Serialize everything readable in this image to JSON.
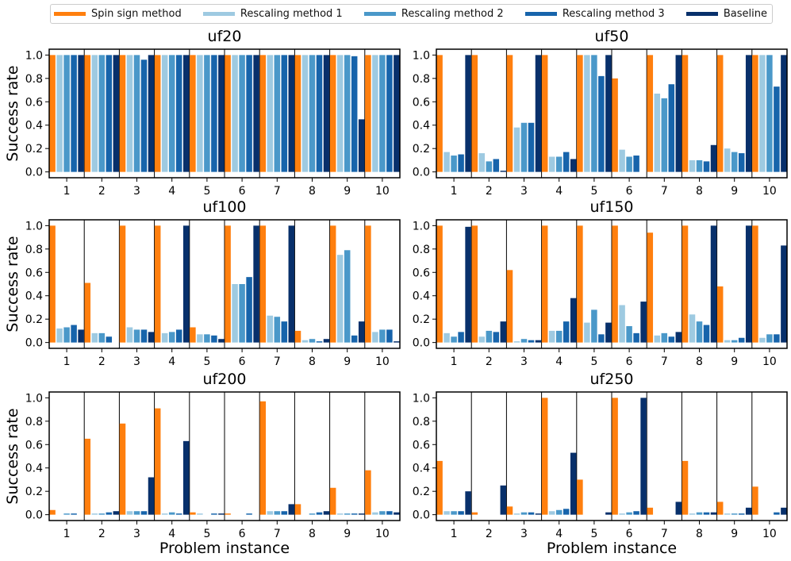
{
  "legend": {
    "items": [
      {
        "label": "Spin sign method",
        "color": "#ff7f0e"
      },
      {
        "label": "Rescaling method 1",
        "color": "#9ecae1"
      },
      {
        "label": "Rescaling method 2",
        "color": "#4a98c9"
      },
      {
        "label": "Rescaling method 3",
        "color": "#1764ab"
      },
      {
        "label": "Baseline",
        "color": "#08306b"
      }
    ]
  },
  "chart_data": [
    {
      "type": "bar",
      "title": "uf20",
      "xlabel": "",
      "ylabel": "Success rate",
      "ylim": [
        -0.05,
        1.05
      ],
      "yticks": [
        "0.0",
        "0.2",
        "0.4",
        "0.6",
        "0.8",
        "1.0"
      ],
      "categories": [
        "1",
        "2",
        "3",
        "4",
        "5",
        "6",
        "7",
        "8",
        "9",
        "10"
      ],
      "series": [
        {
          "name": "Spin sign method",
          "values": [
            1,
            1,
            1,
            1,
            1,
            1,
            1,
            1,
            1,
            1
          ]
        },
        {
          "name": "Rescaling method 1",
          "values": [
            1,
            1,
            1,
            1,
            1,
            1,
            1,
            1,
            1,
            1
          ]
        },
        {
          "name": "Rescaling method 2",
          "values": [
            1,
            1,
            1,
            1,
            1,
            1,
            1,
            1,
            1,
            1
          ]
        },
        {
          "name": "Rescaling method 3",
          "values": [
            1,
            1,
            0.96,
            1,
            1,
            1,
            1,
            1,
            0.99,
            1
          ]
        },
        {
          "name": "Baseline",
          "values": [
            1,
            1,
            1,
            1,
            1,
            1,
            1,
            1,
            0.45,
            1
          ]
        }
      ]
    },
    {
      "type": "bar",
      "title": "uf50",
      "xlabel": "",
      "ylabel": "",
      "ylim": [
        -0.05,
        1.05
      ],
      "yticks": [
        "0.0",
        "0.2",
        "0.4",
        "0.6",
        "0.8",
        "1.0"
      ],
      "categories": [
        "1",
        "2",
        "3",
        "4",
        "5",
        "6",
        "7",
        "8",
        "9",
        "10"
      ],
      "series": [
        {
          "name": "Spin sign method",
          "values": [
            1,
            1,
            1,
            1,
            1,
            0.8,
            1,
            1,
            1,
            1
          ]
        },
        {
          "name": "Rescaling method 1",
          "values": [
            0.17,
            0.16,
            0.38,
            0.13,
            1,
            0.19,
            0.67,
            0.1,
            0.2,
            1
          ]
        },
        {
          "name": "Rescaling method 2",
          "values": [
            0.14,
            0.09,
            0.42,
            0.13,
            1,
            0.13,
            0.63,
            0.1,
            0.17,
            1
          ]
        },
        {
          "name": "Rescaling method 3",
          "values": [
            0.15,
            0.11,
            0.42,
            0.17,
            0.82,
            0.14,
            0.75,
            0.09,
            0.16,
            0.73
          ]
        },
        {
          "name": "Baseline",
          "values": [
            1,
            0.01,
            1,
            0.11,
            1,
            0,
            1,
            0.23,
            1,
            1
          ]
        }
      ]
    },
    {
      "type": "bar",
      "title": "uf100",
      "xlabel": "",
      "ylabel": "Success rate",
      "ylim": [
        -0.05,
        1.05
      ],
      "yticks": [
        "0.0",
        "0.2",
        "0.4",
        "0.6",
        "0.8",
        "1.0"
      ],
      "categories": [
        "1",
        "2",
        "3",
        "4",
        "5",
        "6",
        "7",
        "8",
        "9",
        "10"
      ],
      "series": [
        {
          "name": "Spin sign method",
          "values": [
            1,
            0.51,
            1,
            1,
            0.13,
            1,
            1,
            0.1,
            1,
            1
          ]
        },
        {
          "name": "Rescaling method 1",
          "values": [
            0.12,
            0.08,
            0.13,
            0.08,
            0.07,
            0.5,
            0.23,
            0.02,
            0.75,
            0.09
          ]
        },
        {
          "name": "Rescaling method 2",
          "values": [
            0.13,
            0.08,
            0.11,
            0.09,
            0.07,
            0.5,
            0.22,
            0.03,
            0.79,
            0.11
          ]
        },
        {
          "name": "Rescaling method 3",
          "values": [
            0.15,
            0.05,
            0.11,
            0.11,
            0.06,
            0.56,
            0.18,
            0.01,
            0.06,
            0.11
          ]
        },
        {
          "name": "Baseline",
          "values": [
            0.11,
            0,
            0.09,
            1,
            0.03,
            1,
            1,
            0.03,
            0.18,
            0.01
          ]
        }
      ]
    },
    {
      "type": "bar",
      "title": "uf150",
      "xlabel": "",
      "ylabel": "",
      "ylim": [
        -0.05,
        1.05
      ],
      "yticks": [
        "0.0",
        "0.2",
        "0.4",
        "0.6",
        "0.8",
        "1.0"
      ],
      "categories": [
        "1",
        "2",
        "3",
        "4",
        "5",
        "6",
        "7",
        "8",
        "9",
        "10"
      ],
      "series": [
        {
          "name": "Spin sign method",
          "values": [
            1,
            1,
            0.62,
            1,
            1,
            1,
            0.94,
            1,
            0.48,
            1
          ]
        },
        {
          "name": "Rescaling method 1",
          "values": [
            0.08,
            0.05,
            0.01,
            0.1,
            0.17,
            0.32,
            0.06,
            0.24,
            0.02,
            0.04
          ]
        },
        {
          "name": "Rescaling method 2",
          "values": [
            0.05,
            0.1,
            0.03,
            0.1,
            0.28,
            0.14,
            0.08,
            0.18,
            0.02,
            0.07
          ]
        },
        {
          "name": "Rescaling method 3",
          "values": [
            0.09,
            0.09,
            0.02,
            0.18,
            0.07,
            0.08,
            0.05,
            0.15,
            0.04,
            0.07
          ]
        },
        {
          "name": "Baseline",
          "values": [
            0.99,
            0.18,
            0.02,
            0.38,
            0.17,
            0.35,
            0.09,
            1,
            1,
            0.83
          ]
        }
      ]
    },
    {
      "type": "bar",
      "title": "uf200",
      "xlabel": "Problem instance",
      "ylabel": "Success rate",
      "ylim": [
        -0.05,
        1.05
      ],
      "yticks": [
        "0.0",
        "0.2",
        "0.4",
        "0.6",
        "0.8",
        "1.0"
      ],
      "categories": [
        "1",
        "2",
        "3",
        "4",
        "5",
        "6",
        "7",
        "8",
        "9",
        "10"
      ],
      "series": [
        {
          "name": "Spin sign method",
          "values": [
            0.04,
            0.65,
            0.78,
            0.91,
            0.02,
            0.01,
            0.97,
            0.09,
            0.23,
            0.38
          ]
        },
        {
          "name": "Rescaling method 1",
          "values": [
            0,
            0.01,
            0.03,
            0.01,
            0.01,
            0,
            0.03,
            0,
            0.01,
            0.02
          ]
        },
        {
          "name": "Rescaling method 2",
          "values": [
            0.01,
            0.01,
            0.03,
            0.02,
            0,
            0,
            0.03,
            0.01,
            0.01,
            0.03
          ]
        },
        {
          "name": "Rescaling method 3",
          "values": [
            0.01,
            0.02,
            0.03,
            0.01,
            0.01,
            0.01,
            0.03,
            0.02,
            0.01,
            0.03
          ]
        },
        {
          "name": "Baseline",
          "values": [
            0,
            0.03,
            0.32,
            0.63,
            0.01,
            0,
            0.09,
            0.03,
            0.01,
            0.02
          ]
        }
      ]
    },
    {
      "type": "bar",
      "title": "uf250",
      "xlabel": "Problem instance",
      "ylabel": "",
      "ylim": [
        -0.05,
        1.05
      ],
      "yticks": [
        "0.0",
        "0.2",
        "0.4",
        "0.6",
        "0.8",
        "1.0"
      ],
      "categories": [
        "1",
        "2",
        "3",
        "4",
        "5",
        "6",
        "7",
        "8",
        "9",
        "10"
      ],
      "series": [
        {
          "name": "Spin sign method",
          "values": [
            0.46,
            0.02,
            0.07,
            1,
            0.3,
            1,
            0.06,
            0.46,
            0.11,
            0.24
          ]
        },
        {
          "name": "Rescaling method 1",
          "values": [
            0.03,
            0,
            0.01,
            0.03,
            0,
            0.01,
            0,
            0.01,
            0.01,
            0
          ]
        },
        {
          "name": "Rescaling method 2",
          "values": [
            0.03,
            0,
            0.02,
            0.04,
            0,
            0.02,
            0,
            0.02,
            0.01,
            0
          ]
        },
        {
          "name": "Rescaling method 3",
          "values": [
            0.03,
            0,
            0.02,
            0.05,
            0,
            0.03,
            0,
            0.02,
            0.01,
            0.02
          ]
        },
        {
          "name": "Baseline",
          "values": [
            0.2,
            0.25,
            0.01,
            0.53,
            0.02,
            1,
            0.11,
            0.02,
            0.06,
            0.06
          ]
        }
      ]
    }
  ]
}
